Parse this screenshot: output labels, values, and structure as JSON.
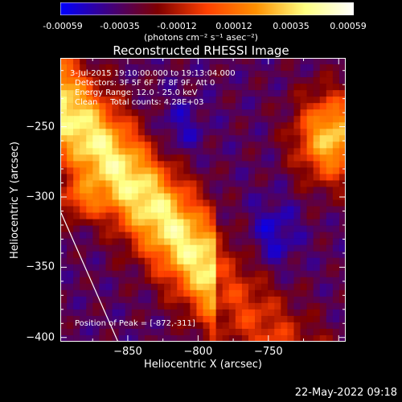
{
  "colorbar": {
    "tick_labels": [
      "-0.00059",
      "-0.00035",
      "-0.00012",
      "0.00012",
      "0.00035",
      "0.00059"
    ],
    "units_label": "(photons cm⁻² s⁻¹ asec⁻²)"
  },
  "annotations": {
    "time_range": "3-Jul-2015 19:10:00.000 to 19:13:04.000",
    "detectors": "Detectors: 3F 5F 6F 7F 8F 9F, Att 0",
    "energy_range": "Energy Range: 12.0 - 25.0 keV",
    "clean_counts": "Clean     Total counts: 4.28E+03",
    "peak_position": "Position of Peak = [-872,-311]"
  },
  "footer": {
    "timestamp": "22-May-2022 09:18"
  },
  "chart_data": {
    "type": "heatmap",
    "title": "Reconstructed RHESSI Image",
    "xlabel": "Heliocentric X (arcsec)",
    "ylabel": "Heliocentric Y (arcsec)",
    "xlim": [
      -898,
      -695
    ],
    "ylim": [
      -403,
      -201
    ],
    "x_ticks": [
      -850,
      -800,
      -750
    ],
    "y_ticks": [
      -250,
      -300,
      -350,
      -400
    ],
    "colorbar_range": [
      -0.00059,
      0.00059
    ],
    "colormap": [
      "#0000ff",
      "#400080",
      "#800000",
      "#ff4000",
      "#ff9000",
      "#ffff80",
      "#ffffff"
    ],
    "peak": [
      -872,
      -311
    ],
    "limb_line": [
      [
        -898,
        -310
      ],
      [
        -857,
        -403
      ]
    ]
  }
}
